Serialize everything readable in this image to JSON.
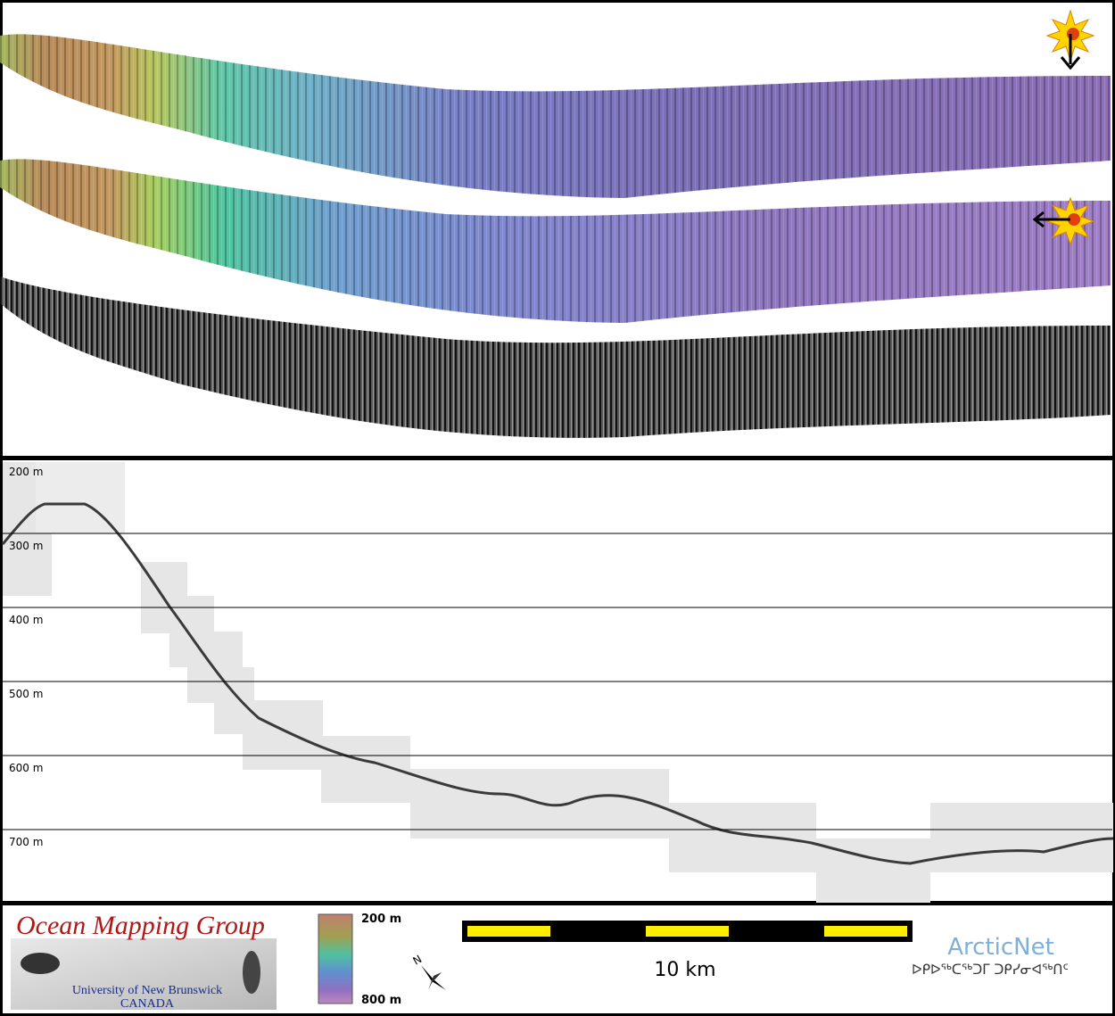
{
  "profile": {
    "depth_labels": [
      "200 m",
      "300 m",
      "400 m",
      "500 m",
      "600 m",
      "700 m"
    ]
  },
  "footer": {
    "logo": {
      "title": "Ocean Mapping Group",
      "university": "University of New Brunswick",
      "country": "CANADA"
    },
    "colorbar": {
      "top_label": "200 m",
      "bottom_label": "800 m"
    },
    "north": "N",
    "scale_label": "10 km",
    "partner": {
      "name": "ArcticNet",
      "syllabics": "ᐅᑭᐅᖅᑕᖅᑐᒥ ᑐᑭᓯᓂᐊᖅᑎᑦ"
    }
  }
}
